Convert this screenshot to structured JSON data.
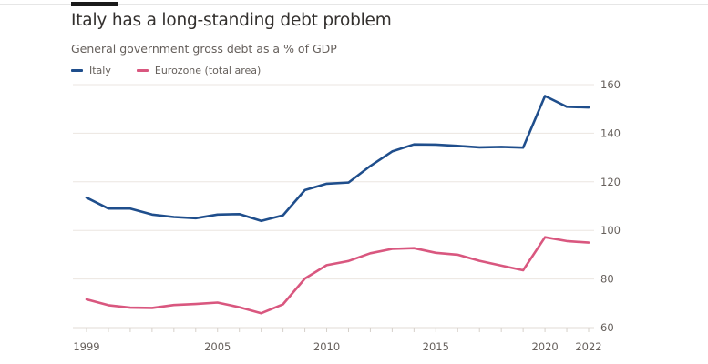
{
  "chart_data": {
    "type": "line",
    "title": "Italy has a long-standing debt problem",
    "subtitle": "General government gross debt as a % of GDP",
    "xlabel": "",
    "ylabel": "",
    "x": [
      1999,
      2000,
      2001,
      2002,
      2003,
      2004,
      2005,
      2006,
      2007,
      2008,
      2009,
      2010,
      2011,
      2012,
      2013,
      2014,
      2015,
      2016,
      2017,
      2018,
      2019,
      2020,
      2021,
      2022
    ],
    "xlim": [
      1999,
      2022
    ],
    "ylim": [
      60,
      160
    ],
    "x_ticks": [
      1999,
      2005,
      2010,
      2015,
      2020,
      2022
    ],
    "y_ticks": [
      60,
      80,
      100,
      120,
      140,
      160
    ],
    "grid": true,
    "y_axis_side": "right",
    "legend_position": "top-left",
    "series": [
      {
        "name": "Italy",
        "color": "#1f4e8c",
        "values": [
          113.5,
          109.0,
          109.0,
          106.5,
          105.5,
          105.0,
          106.5,
          106.7,
          103.9,
          106.2,
          116.6,
          119.2,
          119.7,
          126.5,
          132.5,
          135.4,
          135.3,
          134.8,
          134.2,
          134.4,
          134.1,
          155.3,
          150.9,
          150.6
        ]
      },
      {
        "name": "Eurozone (total area)",
        "color": "#d9577f",
        "values": [
          71.6,
          69.2,
          68.2,
          68.1,
          69.3,
          69.7,
          70.3,
          68.4,
          65.9,
          69.6,
          80.2,
          85.7,
          87.4,
          90.6,
          92.4,
          92.7,
          90.8,
          90.0,
          87.5,
          85.5,
          83.6,
          97.2,
          95.6,
          95.0
        ]
      }
    ]
  }
}
